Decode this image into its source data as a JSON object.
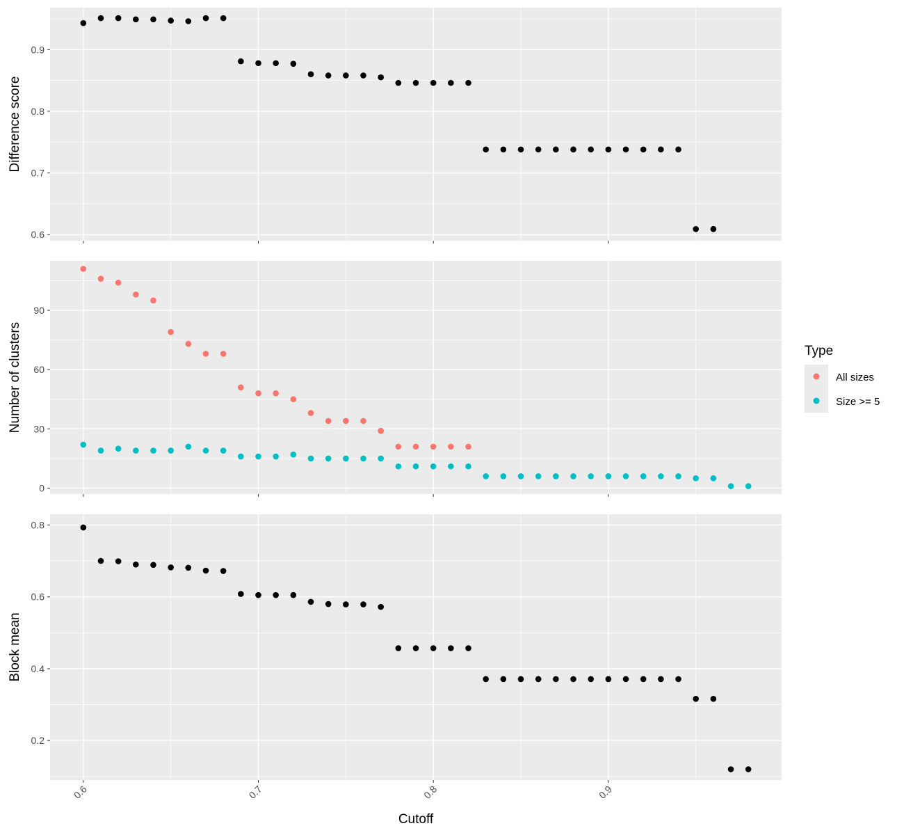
{
  "chart_data": {
    "type": "scatter",
    "xlabel": "Cutoff",
    "x_ticks": [
      "0.6",
      "0.7",
      "0.8",
      "0.9"
    ],
    "x_tick_values": [
      0.6,
      0.7,
      0.8,
      0.9
    ],
    "xlim": [
      0.581,
      0.999
    ],
    "grid": true,
    "legend": {
      "title": "Type",
      "placement": "right",
      "entries": [
        {
          "label": "All sizes",
          "color": "#F8766D"
        },
        {
          "label": "Size >= 5",
          "color": "#00BFC4"
        }
      ]
    },
    "panels": [
      {
        "ylabel": "Difference score",
        "ylim": [
          0.59,
          0.968
        ],
        "y_ticks": [
          "0.6",
          "0.7",
          "0.8",
          "0.9"
        ],
        "y_tick_values": [
          0.6,
          0.7,
          0.8,
          0.9
        ],
        "series": [
          {
            "color": "#000000",
            "x": [
              0.6,
              0.61,
              0.62,
              0.63,
              0.64,
              0.65,
              0.66,
              0.67,
              0.68,
              0.69,
              0.7,
              0.71,
              0.72,
              0.73,
              0.74,
              0.75,
              0.76,
              0.77,
              0.78,
              0.79,
              0.8,
              0.81,
              0.82,
              0.83,
              0.84,
              0.85,
              0.86,
              0.87,
              0.88,
              0.89,
              0.9,
              0.91,
              0.92,
              0.93,
              0.94,
              0.95,
              0.96
            ],
            "y": [
              0.943,
              0.951,
              0.951,
              0.949,
              0.949,
              0.947,
              0.946,
              0.951,
              0.951,
              0.881,
              0.878,
              0.878,
              0.877,
              0.86,
              0.858,
              0.858,
              0.858,
              0.855,
              0.846,
              0.846,
              0.846,
              0.846,
              0.846,
              0.738,
              0.738,
              0.738,
              0.738,
              0.738,
              0.738,
              0.738,
              0.738,
              0.738,
              0.738,
              0.738,
              0.738,
              0.609,
              0.609
            ]
          }
        ]
      },
      {
        "ylabel": "Number of clusters",
        "ylim": [
          -3,
          115
        ],
        "y_ticks": [
          "0",
          "30",
          "60",
          "90"
        ],
        "y_tick_values": [
          0,
          30,
          60,
          90
        ],
        "series": [
          {
            "name": "All sizes",
            "color": "#F8766D",
            "x": [
              0.6,
              0.61,
              0.62,
              0.63,
              0.64,
              0.65,
              0.66,
              0.67,
              0.68,
              0.69,
              0.7,
              0.71,
              0.72,
              0.73,
              0.74,
              0.75,
              0.76,
              0.77,
              0.78,
              0.79,
              0.8,
              0.81,
              0.82
            ],
            "y": [
              111,
              106,
              104,
              98,
              95,
              79,
              73,
              68,
              68,
              51,
              48,
              48,
              45,
              38,
              34,
              34,
              34,
              29,
              21,
              21,
              21,
              21,
              21
            ]
          },
          {
            "name": "Size >= 5",
            "color": "#00BFC4",
            "x": [
              0.6,
              0.61,
              0.62,
              0.63,
              0.64,
              0.65,
              0.66,
              0.67,
              0.68,
              0.69,
              0.7,
              0.71,
              0.72,
              0.73,
              0.74,
              0.75,
              0.76,
              0.77,
              0.78,
              0.79,
              0.8,
              0.81,
              0.82,
              0.83,
              0.84,
              0.85,
              0.86,
              0.87,
              0.88,
              0.89,
              0.9,
              0.91,
              0.92,
              0.93,
              0.94,
              0.95,
              0.96,
              0.97,
              0.98
            ],
            "y": [
              22,
              19,
              20,
              19,
              19,
              19,
              21,
              19,
              19,
              16,
              16,
              16,
              17,
              15,
              15,
              15,
              15,
              15,
              11,
              11,
              11,
              11,
              11,
              6,
              6,
              6,
              6,
              6,
              6,
              6,
              6,
              6,
              6,
              6,
              6,
              5,
              5,
              1,
              1
            ]
          }
        ]
      },
      {
        "ylabel": "Block mean",
        "ylim": [
          0.09,
          0.83
        ],
        "y_ticks": [
          "0.2",
          "0.4",
          "0.6",
          "0.8"
        ],
        "y_tick_values": [
          0.2,
          0.4,
          0.6,
          0.8
        ],
        "series": [
          {
            "color": "#000000",
            "x": [
              0.6,
              0.61,
              0.62,
              0.63,
              0.64,
              0.65,
              0.66,
              0.67,
              0.68,
              0.69,
              0.7,
              0.71,
              0.72,
              0.73,
              0.74,
              0.75,
              0.76,
              0.77,
              0.78,
              0.79,
              0.8,
              0.81,
              0.82,
              0.83,
              0.84,
              0.85,
              0.86,
              0.87,
              0.88,
              0.89,
              0.9,
              0.91,
              0.92,
              0.93,
              0.94,
              0.95,
              0.96,
              0.97,
              0.98
            ],
            "y": [
              0.793,
              0.7,
              0.699,
              0.69,
              0.689,
              0.682,
              0.681,
              0.673,
              0.672,
              0.608,
              0.605,
              0.605,
              0.605,
              0.586,
              0.58,
              0.579,
              0.579,
              0.572,
              0.457,
              0.457,
              0.457,
              0.457,
              0.457,
              0.371,
              0.371,
              0.371,
              0.371,
              0.371,
              0.371,
              0.371,
              0.371,
              0.371,
              0.371,
              0.371,
              0.371,
              0.316,
              0.316,
              0.12,
              0.12
            ]
          }
        ]
      }
    ]
  }
}
